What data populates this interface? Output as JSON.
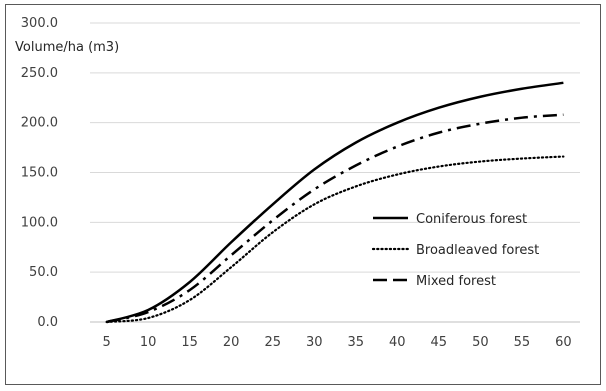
{
  "chart_data": {
    "type": "line",
    "title": "",
    "xlabel": "",
    "ylabel": "Volume/ha (m3)",
    "x": [
      5,
      10,
      15,
      20,
      25,
      30,
      35,
      40,
      45,
      50,
      55,
      60
    ],
    "xticks": [
      "5",
      "10",
      "15",
      "20",
      "25",
      "30",
      "35",
      "40",
      "45",
      "50",
      "55",
      "60"
    ],
    "yticks": [
      "0.0",
      "50.0",
      "100.0",
      "150.0",
      "200.0",
      "250.0",
      "300.0"
    ],
    "xlim": [
      3,
      62
    ],
    "ylim": [
      0,
      300
    ],
    "grid": "horizontal",
    "legend_position": "right",
    "series": [
      {
        "name": "Coniferous forest",
        "style": "solid",
        "color": "#000000",
        "values": [
          0.0,
          12.0,
          40.0,
          80.0,
          118.0,
          153.0,
          180.0,
          200.0,
          215.0,
          226.0,
          234.0,
          240.0
        ]
      },
      {
        "name": "Broadleaved forest",
        "style": "dotted",
        "color": "#000000",
        "values": [
          0.0,
          4.0,
          22.0,
          55.0,
          90.0,
          118.0,
          136.0,
          148.0,
          156.0,
          161.0,
          164.0,
          166.0
        ]
      },
      {
        "name": "Mixed forest",
        "style": "dashdot",
        "color": "#000000",
        "values": [
          0.0,
          10.0,
          32.0,
          67.0,
          102.0,
          133.0,
          157.0,
          176.0,
          190.0,
          199.0,
          205.0,
          208.0
        ]
      }
    ]
  }
}
